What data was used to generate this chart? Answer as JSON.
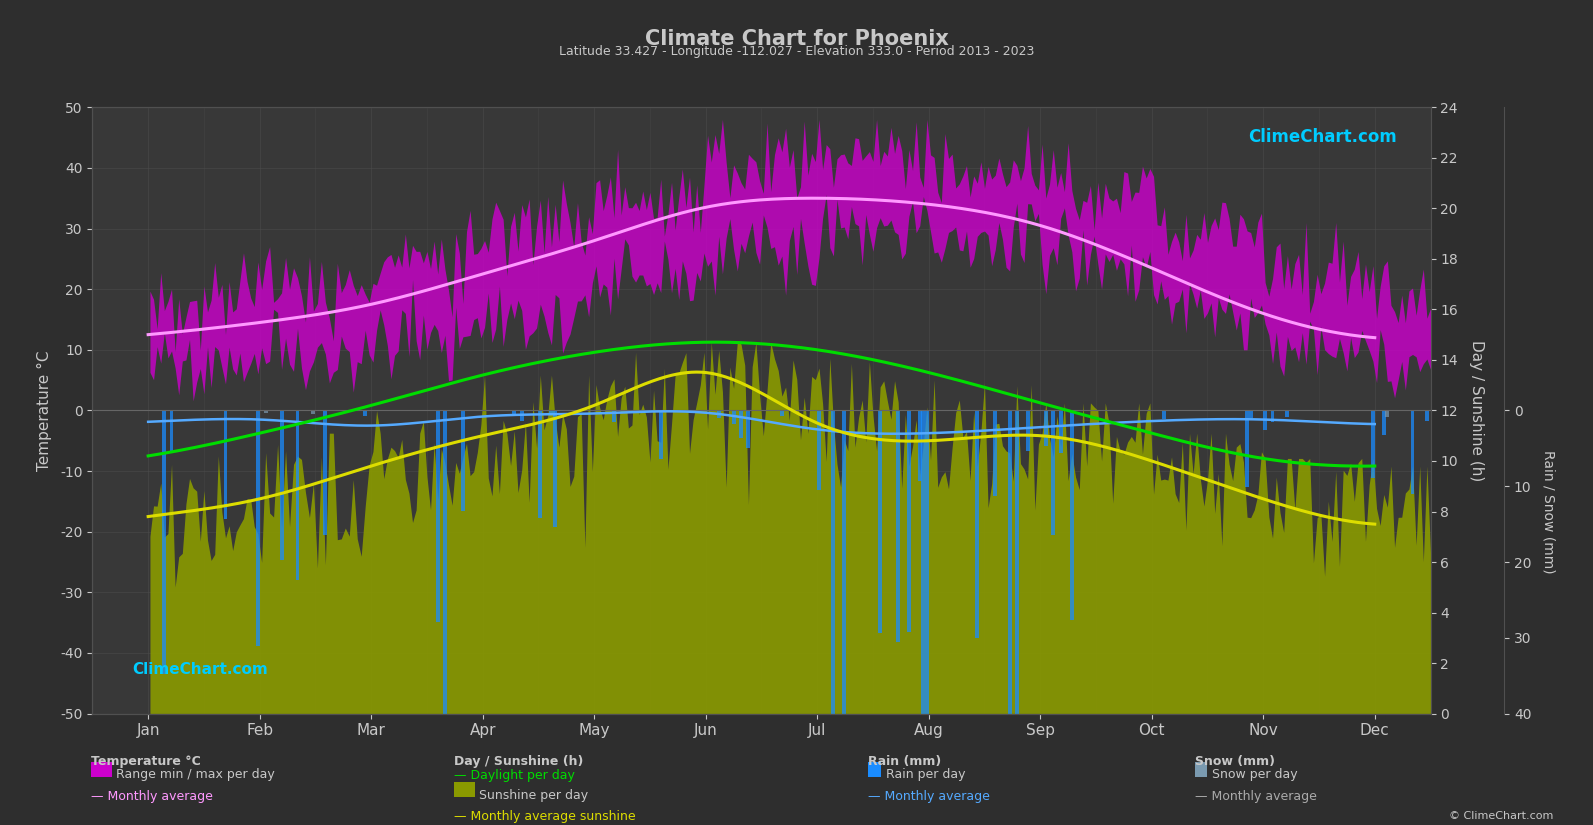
{
  "title": "Climate Chart for Phoenix",
  "subtitle": "Latitude 33.427 - Longitude -112.027 - Elevation 333.0 - Period 2013 - 2023",
  "bg_color": "#2e2e2e",
  "plot_bg_color": "#383838",
  "grid_color": "#505050",
  "text_color": "#c8c8c8",
  "months": [
    "Jan",
    "Feb",
    "Mar",
    "Apr",
    "May",
    "Jun",
    "Jul",
    "Aug",
    "Sep",
    "Oct",
    "Nov",
    "Dec"
  ],
  "days_per_month": [
    31,
    28,
    31,
    30,
    31,
    30,
    31,
    31,
    30,
    31,
    30,
    31
  ],
  "temp_avg_monthly": [
    12.5,
    14.5,
    17.5,
    22.5,
    28.0,
    33.5,
    35.0,
    34.0,
    30.5,
    23.5,
    16.0,
    12.0
  ],
  "temp_min_monthly": [
    7.0,
    9.0,
    12.0,
    16.0,
    21.5,
    27.0,
    29.5,
    28.5,
    25.0,
    18.0,
    10.5,
    7.0
  ],
  "temp_max_monthly": [
    18.0,
    21.0,
    24.0,
    30.0,
    35.0,
    41.0,
    41.5,
    40.0,
    36.5,
    30.0,
    22.5,
    17.5
  ],
  "temp_abs_min_monthly": [
    2.0,
    3.5,
    5.0,
    9.0,
    14.0,
    20.0,
    25.0,
    24.0,
    19.0,
    11.0,
    4.0,
    1.5
  ],
  "temp_abs_max_monthly": [
    25.0,
    28.0,
    32.0,
    37.0,
    43.0,
    47.0,
    47.0,
    46.0,
    44.0,
    38.0,
    30.0,
    24.0
  ],
  "daylight_monthly": [
    10.2,
    11.1,
    12.2,
    13.4,
    14.3,
    14.7,
    14.4,
    13.5,
    12.3,
    11.1,
    10.1,
    9.8
  ],
  "sunshine_avg_monthly": [
    7.8,
    8.5,
    9.8,
    11.0,
    12.2,
    13.5,
    11.5,
    10.8,
    11.0,
    10.0,
    8.5,
    7.5
  ],
  "rain_daily_avg_mm": [
    18,
    15,
    20,
    8,
    4,
    3,
    25,
    28,
    22,
    14,
    12,
    18
  ],
  "rain_monthly_avg_line": [
    1.5,
    1.2,
    2.0,
    0.8,
    0.4,
    0.3,
    2.5,
    3.0,
    2.2,
    1.4,
    1.2,
    1.8
  ],
  "snow_daily_avg_mm": [
    0.5,
    0.2,
    0,
    0,
    0,
    0,
    0,
    0,
    0,
    0,
    0.1,
    0.3
  ],
  "temp_ylim": [
    -50,
    50
  ],
  "sunshine_ylim": [
    0,
    24
  ],
  "rain_ylim_mm": [
    0,
    40
  ],
  "watermark_top": "ClimeChart.com",
  "watermark_bot": "ClimeChart.com",
  "copyright": "© ClimeChart.com",
  "temp_range_color": "#cc00cc",
  "sunshine_fill_color": "#8a9a00",
  "rain_bar_color": "#1a8cff",
  "snow_bar_color": "#7a9ab0",
  "daylight_line_color": "#00dd00",
  "sunshine_line_color": "#dddd00",
  "temp_avg_line_color": "#ff99ff",
  "rain_avg_line_color": "#55aaff",
  "snow_avg_line_color": "#aaaaaa"
}
